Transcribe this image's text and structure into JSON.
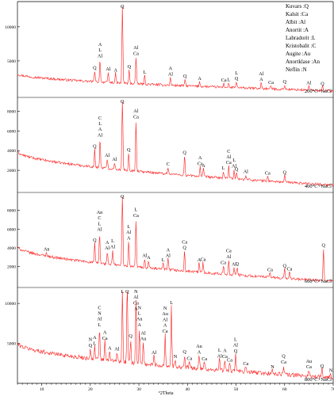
{
  "chart_data": {
    "type": "line",
    "xlabel": "°2Theta",
    "xlim": [
      5,
      70
    ],
    "x_ticks": [
      10,
      20,
      30,
      40,
      50,
      60,
      70
    ],
    "line_color": "#ff1a1a",
    "legend": {
      "position": "top-right",
      "items": [
        "Kuvars :Q",
        "Kalsit :Ca",
        "Albit :Al",
        "Anortit :A",
        "Labradorit :L",
        "Kristobalit :C",
        "Augite :Au",
        "Anortklase :An",
        "Neflin :N"
      ]
    },
    "panels": [
      {
        "label": "200°C+NaCl",
        "ylim": [
          0,
          13000
        ],
        "y_ticks": [
          5000,
          10000
        ],
        "baseline_start": 3100,
        "baseline_end": 600,
        "noise": 350,
        "peaks": [
          {
            "x": 20.9,
            "y": 1600,
            "labels": [
              "Q"
            ]
          },
          {
            "x": 22.0,
            "y": 3400,
            "labels": [
              "A",
              "L",
              "Al"
            ]
          },
          {
            "x": 23.7,
            "y": 1500,
            "labels": [
              "Al"
            ]
          },
          {
            "x": 25.2,
            "y": 1400,
            "labels": [
              "A"
            ]
          },
          {
            "x": 26.6,
            "y": 13000,
            "labels": [
              "Q"
            ]
          },
          {
            "x": 28.0,
            "y": 2000,
            "labels": [
              "Q"
            ]
          },
          {
            "x": 29.4,
            "y": 4000,
            "labels": [
              "Al",
              "Ca"
            ]
          },
          {
            "x": 31.2,
            "y": 1300,
            "labels": [
              "L"
            ]
          },
          {
            "x": 36.5,
            "y": 1200,
            "labels": [
              "A",
              "Al"
            ]
          },
          {
            "x": 39.5,
            "y": 1000,
            "labels": [
              "Q"
            ]
          },
          {
            "x": 42.5,
            "y": 700,
            "labels": [
              "A"
            ]
          },
          {
            "x": 47.5,
            "y": 600,
            "labels": [
              "Ca"
            ]
          },
          {
            "x": 48.5,
            "y": 700,
            "labels": [
              "L"
            ]
          },
          {
            "x": 50.1,
            "y": 900,
            "labels": [
              "L",
              "Q"
            ]
          },
          {
            "x": 55.2,
            "y": 900,
            "labels": [
              "Al",
              "A"
            ]
          },
          {
            "x": 57.2,
            "y": 500,
            "labels": [
              "Ca"
            ]
          },
          {
            "x": 60.0,
            "y": 700,
            "labels": [
              "Q"
            ]
          },
          {
            "x": 65.0,
            "y": 600,
            "labels": [
              "Al"
            ]
          },
          {
            "x": 67.8,
            "y": 600,
            "labels": [
              "Q"
            ]
          }
        ]
      },
      {
        "label": "400°C+NaCl",
        "ylim": [
          0,
          9000
        ],
        "y_ticks": [
          2000,
          4000,
          6000,
          8000
        ],
        "baseline_start": 3900,
        "baseline_end": 500,
        "noise": 250,
        "peaks": [
          {
            "x": 20.9,
            "y": 1800,
            "labels": [
              "Q"
            ]
          },
          {
            "x": 22.0,
            "y": 3000,
            "labels": [
              "C",
              "L",
              "A",
              "Al"
            ]
          },
          {
            "x": 23.5,
            "y": 1000,
            "labels": [
              "Al"
            ]
          },
          {
            "x": 25.0,
            "y": 700,
            "labels": [
              "Al"
            ]
          },
          {
            "x": 26.6,
            "y": 8600,
            "labels": [
              "Q"
            ]
          },
          {
            "x": 27.9,
            "y": 1800,
            "labels": [
              "Q"
            ]
          },
          {
            "x": 29.4,
            "y": 5200,
            "labels": [
              "Al",
              "Ca"
            ]
          },
          {
            "x": 36.0,
            "y": 700,
            "labels": [
              "C"
            ]
          },
          {
            "x": 39.4,
            "y": 2000,
            "labels": [
              "Q"
            ]
          },
          {
            "x": 42.6,
            "y": 1000,
            "labels": [
              "A",
              "Ca"
            ]
          },
          {
            "x": 43.3,
            "y": 800,
            "labels": [
              "A"
            ]
          },
          {
            "x": 47.4,
            "y": 700,
            "labels": [
              "L"
            ]
          },
          {
            "x": 48.5,
            "y": 1300,
            "labels": [
              "C",
              "Al",
              "Ca"
            ]
          },
          {
            "x": 49.6,
            "y": 1000,
            "labels": [
              "L",
              "Al"
            ]
          },
          {
            "x": 50.1,
            "y": 700,
            "labels": [
              "Q"
            ]
          },
          {
            "x": 52.0,
            "y": 500,
            "labels": [
              "Al"
            ]
          },
          {
            "x": 56.5,
            "y": 500,
            "labels": [
              "Ca"
            ]
          },
          {
            "x": 60.0,
            "y": 700,
            "labels": [
              "Q"
            ]
          }
        ]
      },
      {
        "label": "600°C+NaCl",
        "ylim": [
          0,
          9500
        ],
        "y_ticks": [
          2000,
          4000,
          6000,
          8000
        ],
        "baseline_start": 4100,
        "baseline_end": 400,
        "noise": 280,
        "peaks": [
          {
            "x": 11.0,
            "y": 400,
            "labels": [
              "An"
            ]
          },
          {
            "x": 20.9,
            "y": 2100,
            "labels": [
              "Q"
            ]
          },
          {
            "x": 21.9,
            "y": 3300,
            "labels": [
              "An",
              "C",
              "L",
              "Al"
            ]
          },
          {
            "x": 23.5,
            "y": 1400,
            "labels": [
              "A",
              "Al"
            ]
          },
          {
            "x": 24.6,
            "y": 1600,
            "labels": [
              "L",
              "Al"
            ]
          },
          {
            "x": 26.6,
            "y": 9300,
            "labels": [
              "Q"
            ]
          },
          {
            "x": 27.9,
            "y": 2700,
            "labels": [
              "L",
              "Al",
              "A"
            ]
          },
          {
            "x": 29.4,
            "y": 5200,
            "labels": [
              "L",
              "Ca"
            ]
          },
          {
            "x": 31.2,
            "y": 1000,
            "labels": [
              "Al"
            ]
          },
          {
            "x": 32.0,
            "y": 800,
            "labels": [
              "A"
            ]
          },
          {
            "x": 35.0,
            "y": 700,
            "labels": [
              "L"
            ]
          },
          {
            "x": 36.0,
            "y": 1200,
            "labels": [
              "A",
              "Al"
            ]
          },
          {
            "x": 39.4,
            "y": 2200,
            "labels": [
              "Ca",
              "Q"
            ]
          },
          {
            "x": 42.4,
            "y": 1000,
            "labels": [
              "A"
            ]
          },
          {
            "x": 43.2,
            "y": 1100,
            "labels": [
              "Ca"
            ]
          },
          {
            "x": 47.4,
            "y": 900,
            "labels": [
              "Ca"
            ]
          },
          {
            "x": 48.5,
            "y": 1600,
            "labels": [
              "Ca",
              "Al"
            ]
          },
          {
            "x": 49.6,
            "y": 800,
            "labels": [
              "Al"
            ]
          },
          {
            "x": 50.2,
            "y": 900,
            "labels": [
              "Q"
            ]
          },
          {
            "x": 57.0,
            "y": 500,
            "labels": [
              "Ca"
            ]
          },
          {
            "x": 60.0,
            "y": 1000,
            "labels": [
              "Q"
            ]
          },
          {
            "x": 61.0,
            "y": 700,
            "labels": [
              "Ca"
            ]
          },
          {
            "x": 68.0,
            "y": 3500,
            "labels": [
              "Q"
            ]
          }
        ]
      },
      {
        "label": "800°C+NaCl",
        "ylim": [
          0,
          11500
        ],
        "y_ticks": [
          5000,
          10000
        ],
        "baseline_start": 5000,
        "baseline_end": 700,
        "noise": 520,
        "peaks": [
          {
            "x": 20.0,
            "y": 1300,
            "labels": [
              "N",
              "Q"
            ]
          },
          {
            "x": 20.9,
            "y": 1600,
            "labels": [
              "A",
              "L"
            ]
          },
          {
            "x": 21.9,
            "y": 4000,
            "labels": [
              "C",
              "N",
              "Al",
              "L"
            ]
          },
          {
            "x": 23.0,
            "y": 2400,
            "labels": [
              "A",
              "Ca"
            ]
          },
          {
            "x": 24.0,
            "y": 1200,
            "labels": [
              "A"
            ]
          },
          {
            "x": 25.5,
            "y": 1200,
            "labels": [
              "Al"
            ]
          },
          {
            "x": 26.6,
            "y": 10000,
            "labels": [
              "L"
            ]
          },
          {
            "x": 27.6,
            "y": 11000,
            "labels": [
              "Q"
            ]
          },
          {
            "x": 28.3,
            "y": 3000,
            "labels": [
              "Q"
            ]
          },
          {
            "x": 29.4,
            "y": 8000,
            "labels": [
              "N",
              "Al",
              "Ca",
              "A"
            ]
          },
          {
            "x": 30.1,
            "y": 4500,
            "labels": [
              "N",
              "L",
              "Au",
              "A"
            ]
          },
          {
            "x": 30.9,
            "y": 2800,
            "labels": [
              "Al",
              "Au"
            ]
          },
          {
            "x": 33.1,
            "y": 1200,
            "labels": [
              "Al"
            ]
          },
          {
            "x": 35.4,
            "y": 4000,
            "labels": [
              "N",
              "Au",
              "Al",
              "A",
              "Ca"
            ]
          },
          {
            "x": 36.7,
            "y": 7600,
            "labels": [
              "L"
            ]
          },
          {
            "x": 37.5,
            "y": 900,
            "labels": [
              "N"
            ]
          },
          {
            "x": 39.4,
            "y": 1600,
            "labels": [
              "Q"
            ]
          },
          {
            "x": 40.4,
            "y": 800,
            "labels": [
              "Ca"
            ]
          },
          {
            "x": 42.4,
            "y": 1700,
            "labels": [
              "Au",
              "A"
            ]
          },
          {
            "x": 43.5,
            "y": 900,
            "labels": [
              "Ca"
            ]
          },
          {
            "x": 46.6,
            "y": 1400,
            "labels": [
              "L",
              "Al"
            ]
          },
          {
            "x": 47.7,
            "y": 1400,
            "labels": [
              "A",
              "Ca"
            ]
          },
          {
            "x": 48.7,
            "y": 1000,
            "labels": [
              "Ca"
            ]
          },
          {
            "x": 49.9,
            "y": 2200,
            "labels": [
              "L",
              "Al",
              "Q"
            ]
          },
          {
            "x": 52.0,
            "y": 700,
            "labels": [
              "Ca"
            ]
          },
          {
            "x": 57.5,
            "y": 500,
            "labels": [
              "N"
            ]
          },
          {
            "x": 59.8,
            "y": 1200,
            "labels": [
              "Q",
              "Ca"
            ]
          },
          {
            "x": 65.0,
            "y": 800,
            "labels": [
              "Au",
              "Ca"
            ]
          },
          {
            "x": 67.7,
            "y": 1000,
            "labels": [
              "Q"
            ]
          },
          {
            "x": 69.5,
            "y": 500,
            "labels": [
              "N"
            ]
          }
        ]
      }
    ]
  }
}
